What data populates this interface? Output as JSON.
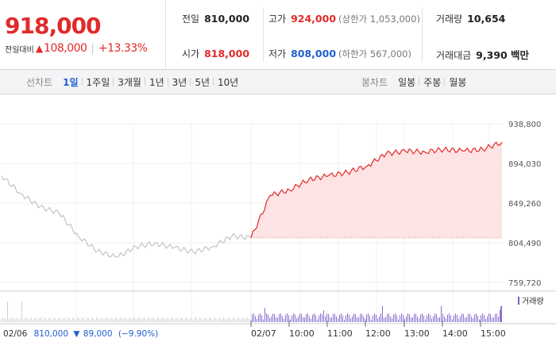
{
  "summary": {
    "price": "918,000",
    "change_label": "전일대비",
    "change_arrow": "▲",
    "change_value": "108,000",
    "change_pct": "+13.33%",
    "stats": {
      "prev_close": {
        "label": "전일",
        "value": "810,000"
      },
      "high": {
        "label": "고가",
        "value": "924,000",
        "note": "(상한가 1,053,000)"
      },
      "volume": {
        "label": "거래량",
        "value": "10,654"
      },
      "open": {
        "label": "시가",
        "value": "818,000"
      },
      "low": {
        "label": "저가",
        "value": "808,000",
        "note": "(하한가 567,000)"
      },
      "trade_value": {
        "label": "거래대금",
        "value": "9,390 백만"
      }
    },
    "colors": {
      "up": "#e12a2a",
      "down": "#1f5fd1"
    }
  },
  "tabs": {
    "line_chart": {
      "title": "선차트",
      "items": [
        "1일",
        "1주일",
        "3개월",
        "1년",
        "3년",
        "5년",
        "10년"
      ],
      "active": "1일"
    },
    "candle_chart": {
      "title": "봉차트",
      "items": [
        "일봉",
        "주봉",
        "월봉"
      ]
    }
  },
  "chart": {
    "volume_legend": "거래량",
    "prev_day_info": {
      "date": "02/06",
      "close": "810,000",
      "arrow": "▼",
      "change": "89,000",
      "pct": "(−9.90%)"
    }
  },
  "chart_data": {
    "type": "line",
    "y_ticks": [
      "938,800",
      "894,030",
      "849,260",
      "804,490",
      "759,720"
    ],
    "ylim": [
      759720,
      938800
    ],
    "x_ticks": [
      "02/06",
      "02/07",
      "10:00",
      "11:00",
      "12:00",
      "13:00",
      "14:00",
      "15:00"
    ],
    "baseline": 810000,
    "series": [
      {
        "x": [
          "02/06 09:00",
          "02/06 09:30",
          "02/06 10:00",
          "02/06 10:30",
          "02/06 11:00",
          "02/06 11:30",
          "02/06 12:00",
          "02/06 12:30",
          "02/06 13:00",
          "02/06 13:30",
          "02/06 14:00",
          "02/06 14:30",
          "02/06 15:00",
          "02/06 15:30"
        ],
        "values": [
          880000,
          860000,
          845000,
          838000,
          812000,
          795000,
          788000,
          800000,
          804000,
          799000,
          794000,
          800000,
          812000,
          810000
        ]
      },
      {
        "x": [
          "09:00",
          "09:30",
          "10:00",
          "10:30",
          "11:00",
          "11:30",
          "12:00",
          "12:30",
          "13:00",
          "13:30",
          "14:00",
          "14:30",
          "15:00",
          "15:30"
        ],
        "values": [
          810000,
          858000,
          864000,
          876000,
          880000,
          884000,
          891000,
          905000,
          908000,
          907000,
          910000,
          908000,
          910000,
          918000
        ]
      }
    ]
  }
}
